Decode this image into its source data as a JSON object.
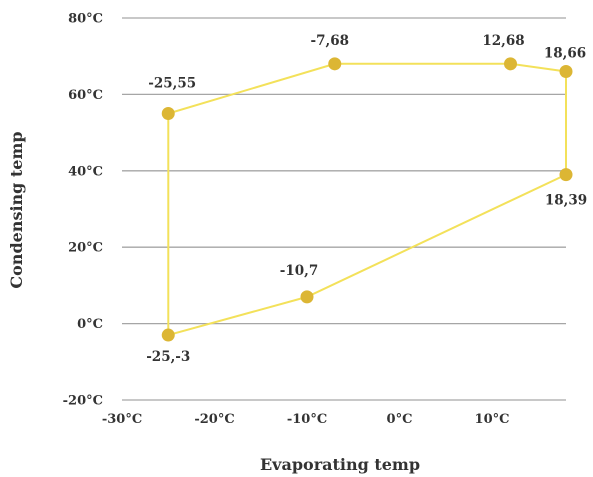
{
  "chart_data": {
    "type": "scatter",
    "xlabel": "Evaporating temp",
    "ylabel": "Condensing temp",
    "xlim": [
      -30,
      18
    ],
    "ylim": [
      -20,
      80
    ],
    "x_ticks": [
      "-30°C",
      "-20°C",
      "-10°C",
      "0°C",
      "10°C"
    ],
    "y_ticks": [
      "-20°C",
      "0°C",
      "20°C",
      "40°C",
      "60°C",
      "80°C"
    ],
    "grid": "horizontal",
    "line_color": "#f3e15a",
    "marker_color": "#dcb634",
    "points": [
      {
        "x": -25,
        "y": -3,
        "label": "-25,-3"
      },
      {
        "x": -25,
        "y": 55,
        "label": "-25,55"
      },
      {
        "x": -7,
        "y": 68,
        "label": "-7,68"
      },
      {
        "x": 12,
        "y": 68,
        "label": "12,68"
      },
      {
        "x": 18,
        "y": 66,
        "label": "18,66"
      },
      {
        "x": 18,
        "y": 39,
        "label": "18,39"
      },
      {
        "x": -10,
        "y": 7,
        "label": "-10,7"
      }
    ],
    "closed": true
  }
}
